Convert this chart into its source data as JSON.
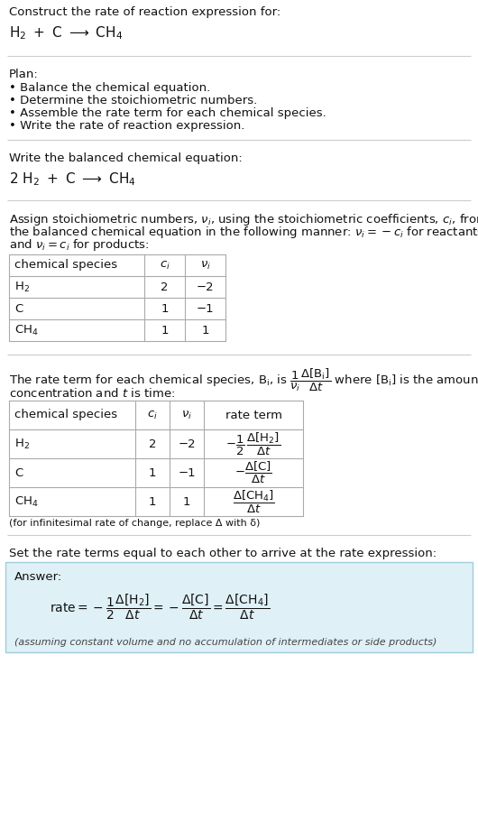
{
  "title_line1": "Construct the rate of reaction expression for:",
  "plan_header": "Plan:",
  "plan_items": [
    "• Balance the chemical equation.",
    "• Determine the stoichiometric numbers.",
    "• Assemble the rate term for each chemical species.",
    "• Write the rate of reaction expression."
  ],
  "balanced_header": "Write the balanced chemical equation:",
  "stoich_intro": [
    "Assign stoichiometric numbers, $\\nu_i$, using the stoichiometric coefficients, $c_i$, from",
    "the balanced chemical equation in the following manner: $\\nu_i = -c_i$ for reactants",
    "and $\\nu_i = c_i$ for products:"
  ],
  "table1_rows": [
    [
      "$\\mathrm{H_2}$",
      "2",
      "−2"
    ],
    [
      "C",
      "1",
      "−1"
    ],
    [
      "$\\mathrm{CH_4}$",
      "1",
      "1"
    ]
  ],
  "table2_rows": [
    [
      "$\\mathrm{H_2}$",
      "2",
      "−2"
    ],
    [
      "C",
      "1",
      "−1"
    ],
    [
      "$\\mathrm{CH_4}$",
      "1",
      "1"
    ]
  ],
  "infinitesimal_note": "(for infinitesimal rate of change, replace Δ with δ)",
  "set_equal_text": "Set the rate terms equal to each other to arrive at the rate expression:",
  "answer_label": "Answer:",
  "answer_note": "(assuming constant volume and no accumulation of intermediates or side products)",
  "bg_color": "#ffffff",
  "answer_bg": "#dff0f7",
  "answer_border": "#a0cce0",
  "table_border": "#aaaaaa",
  "text_color": "#111111",
  "gray_text": "#666666"
}
